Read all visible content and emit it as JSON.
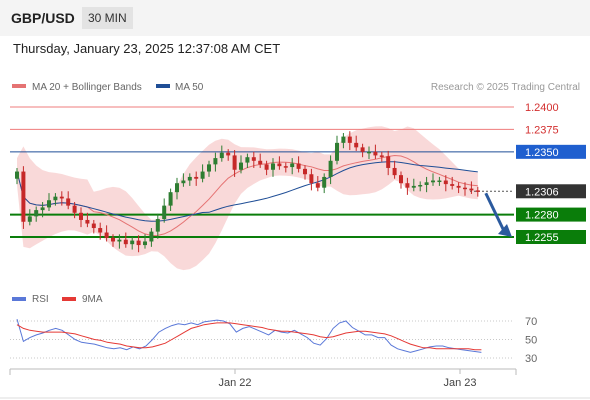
{
  "header": {
    "symbol": "GBP/USD",
    "timeframe": "30 MIN"
  },
  "timestamp": "Thursday, January 23, 2025 12:37:08 AM CET",
  "legend": {
    "ma20": "MA 20 + Bollinger Bands",
    "ma50": "MA 50",
    "credit": "Research © 2025 Trading Central"
  },
  "rsi_legend": {
    "rsi": "RSI",
    "ma": "9MA"
  },
  "colors": {
    "up": "#2e7d32",
    "down": "#c62828",
    "bollinger": "#f7cccc",
    "ma20": "#e57373",
    "ma50": "#1f4e96",
    "resistance": "#ef7c7c",
    "pivot": "#1f4e96",
    "support": "#0a7d0a",
    "current": "#333333",
    "rsi": "#5a78d8",
    "rsi_ma": "#e53935",
    "arrow": "#2b5a9e"
  },
  "chart_data": {
    "type": "candlestick",
    "x_ticks": [
      "Jan 22",
      "Jan 23"
    ],
    "y_range": [
      1.222,
      1.241
    ],
    "levels": [
      {
        "value": 1.24,
        "label": "1.2400",
        "kind": "resistance"
      },
      {
        "value": 1.2375,
        "label": "1.2375",
        "kind": "resistance"
      },
      {
        "value": 1.235,
        "label": "1.2350",
        "kind": "pivot"
      },
      {
        "value": 1.2306,
        "label": "1.2306",
        "kind": "current"
      },
      {
        "value": 1.228,
        "label": "1.2280",
        "kind": "support"
      },
      {
        "value": 1.2255,
        "label": "1.2255",
        "kind": "support"
      }
    ],
    "forecast_target": 1.2255,
    "closes": [
      1.2328,
      1.2272,
      1.2278,
      1.2285,
      1.2288,
      1.2296,
      1.23,
      1.2298,
      1.229,
      1.2282,
      1.2274,
      1.227,
      1.2265,
      1.226,
      1.2254,
      1.225,
      1.2252,
      1.2247,
      1.2251,
      1.2246,
      1.225,
      1.2261,
      1.2275,
      1.229,
      1.2305,
      1.2315,
      1.2318,
      1.2322,
      1.232,
      1.2328,
      1.2336,
      1.2343,
      1.2349,
      1.2346,
      1.233,
      1.2338,
      1.2344,
      1.234,
      1.2336,
      1.233,
      1.2337,
      1.2334,
      1.2333,
      1.2337,
      1.2331,
      1.2325,
      1.2315,
      1.231,
      1.2322,
      1.234,
      1.236,
      1.2367,
      1.236,
      1.2355,
      1.235,
      1.235,
      1.2346,
      1.2345,
      1.2332,
      1.2324,
      1.2315,
      1.231,
      1.2312,
      1.2313,
      1.2316,
      1.2318,
      1.2318,
      1.2314,
      1.2312,
      1.231,
      1.2309,
      1.2307,
      1.2306
    ],
    "rsi": {
      "ticks": [
        70,
        50,
        30
      ],
      "range": [
        20,
        80
      ],
      "values": [
        72,
        48,
        52,
        55,
        57,
        60,
        62,
        60,
        55,
        50,
        47,
        46,
        45,
        43,
        41,
        40,
        41,
        39,
        42,
        40,
        43,
        50,
        58,
        62,
        65,
        67,
        66,
        68,
        66,
        69,
        70,
        71,
        70,
        67,
        58,
        62,
        64,
        61,
        58,
        55,
        60,
        58,
        57,
        60,
        56,
        52,
        46,
        44,
        51,
        62,
        68,
        70,
        63,
        59,
        55,
        55,
        52,
        52,
        44,
        40,
        38,
        36,
        38,
        40,
        42,
        43,
        43,
        41,
        40,
        39,
        38,
        37,
        36
      ],
      "ma": [
        66,
        62,
        60,
        59,
        58,
        58,
        58,
        58,
        57,
        56,
        54,
        52,
        50,
        49,
        47,
        46,
        45,
        43,
        42,
        41,
        41,
        42,
        44,
        46,
        50,
        54,
        58,
        62,
        64,
        66,
        67,
        68,
        68,
        68,
        67,
        66,
        65,
        64,
        63,
        61,
        60,
        59,
        59,
        58,
        57,
        56,
        55,
        53,
        52,
        53,
        55,
        57,
        58,
        59,
        59,
        58,
        57,
        56,
        54,
        51,
        48,
        45,
        43,
        41,
        41,
        40,
        40,
        40,
        40,
        40,
        40,
        39,
        39
      ]
    }
  }
}
